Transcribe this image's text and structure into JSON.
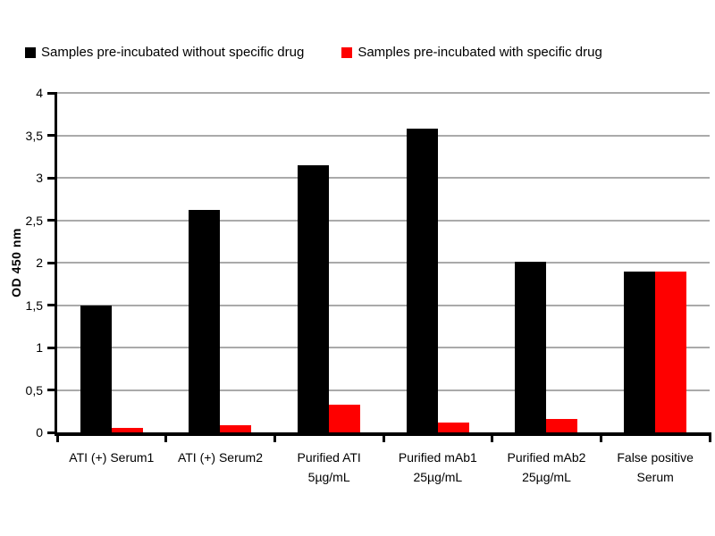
{
  "chart_data": {
    "type": "bar",
    "title": "",
    "xlabel": "",
    "ylabel": "OD 450 nm",
    "ylim": [
      0,
      4
    ],
    "ytick_step": 0.5,
    "ytick_labels": [
      "0",
      "0,5",
      "1",
      "1,5",
      "2",
      "2,5",
      "3",
      "3,5",
      "4"
    ],
    "grid": true,
    "legend_position": "top",
    "categories": [
      "ATI (+) Serum1",
      "ATI (+) Serum2",
      "Purified ATI\n5µg/mL",
      "Purified mAb1\n25µg/mL",
      "Purified mAb2\n25µg/mL",
      "False positive\nSerum"
    ],
    "series": [
      {
        "name": "Samples pre-incubated without specific drug",
        "color": "#000000",
        "values": [
          1.5,
          2.62,
          3.15,
          3.58,
          2.01,
          1.9
        ]
      },
      {
        "name": "Samples pre-incubated with specific drug",
        "color": "#fe0000",
        "values": [
          0.05,
          0.08,
          0.33,
          0.12,
          0.16,
          1.9
        ]
      }
    ],
    "colors": {
      "axis": "#000000",
      "gridline": "#aaaaaa",
      "background": "#ffffff"
    }
  }
}
